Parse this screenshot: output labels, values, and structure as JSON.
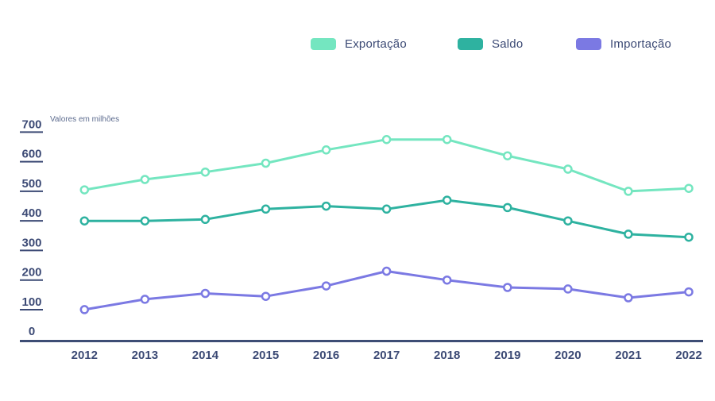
{
  "legend": {
    "items": [
      {
        "label": "Exportação",
        "color": "#74e6c0"
      },
      {
        "label": "Saldo",
        "color": "#2eb2a0"
      },
      {
        "label": "Importação",
        "color": "#7b79e3"
      }
    ]
  },
  "axis_note": "Valores em milhões",
  "colors": {
    "label_text": "#3c4a75",
    "axis_line": "#3e4d75",
    "note_text": "#5d6c8f",
    "background": "#ffffff"
  },
  "chart_data": {
    "type": "line",
    "title": "",
    "xlabel": "",
    "ylabel": "Valores em milhões",
    "x": [
      2012,
      2013,
      2014,
      2015,
      2016,
      2017,
      2018,
      2019,
      2020,
      2021,
      2022
    ],
    "series": [
      {
        "name": "Exportação",
        "color": "#74e6c0",
        "values": [
          505,
          540,
          565,
          595,
          640,
          675,
          675,
          620,
          575,
          500,
          510
        ]
      },
      {
        "name": "Saldo",
        "color": "#2eb2a0",
        "values": [
          400,
          400,
          405,
          440,
          450,
          440,
          470,
          445,
          400,
          355,
          345
        ]
      },
      {
        "name": "Importação",
        "color": "#7b79e3",
        "values": [
          100,
          135,
          155,
          145,
          180,
          230,
          200,
          175,
          170,
          140,
          160
        ]
      }
    ],
    "ylim": [
      0,
      700
    ],
    "ytick_step": 100,
    "yticks": [
      0,
      100,
      200,
      300,
      400,
      500,
      600,
      700
    ],
    "grid": false,
    "markers": "open-circle",
    "legend_position": "top"
  }
}
